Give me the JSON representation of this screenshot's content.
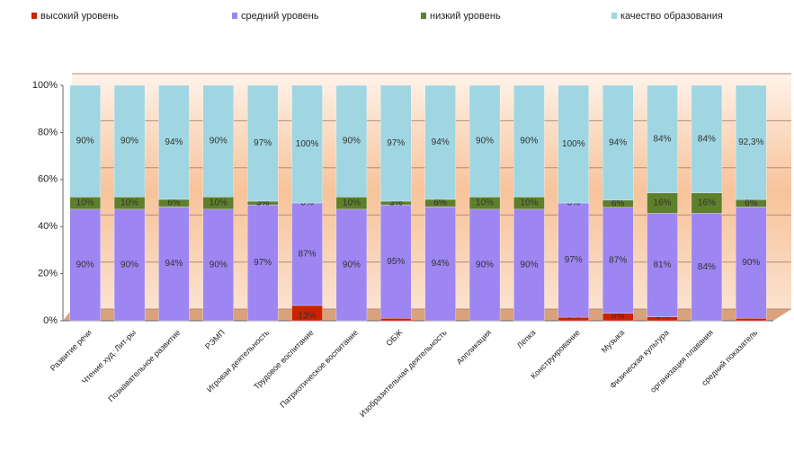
{
  "chart_data": {
    "type": "stacked_bar_percent",
    "categories": [
      "Развитие речи",
      "Чтение худ. Лит-ры",
      "Познавательное развитие",
      "РЭМП",
      "Игровая деятельность",
      "Трудовое воспитание",
      "Патриотическое воспитание",
      "ОБЖ",
      "Изобразительная деятельность",
      "Аппликация",
      "Лепка",
      "Конструирование",
      "Музыка",
      "Физическая культура",
      "организация плавания",
      "средний показатель"
    ],
    "series": [
      {
        "name": "высокий уровень",
        "color": "#cc2200",
        "values": [
          0,
          0,
          0,
          0,
          0,
          13,
          0,
          2,
          0,
          0,
          0,
          3,
          6,
          3,
          0,
          2
        ],
        "value_labels": [
          "0%",
          "0%",
          "0%",
          "0%",
          "0%",
          "13%",
          "0%",
          "2%",
          "0%",
          "0%",
          "0%",
          "3%",
          "6%",
          "3%",
          "0%",
          "2%"
        ]
      },
      {
        "name": "средний уровень",
        "color": "#9d85f2",
        "values": [
          90,
          90,
          94,
          90,
          97,
          87,
          90,
          95,
          94,
          90,
          90,
          97,
          87,
          81,
          84,
          90
        ],
        "value_labels": [
          "90%",
          "90%",
          "94%",
          "90%",
          "97%",
          "87%",
          "90%",
          "95%",
          "94%",
          "90%",
          "90%",
          "97%",
          "87%",
          "81%",
          "84%",
          "90%"
        ]
      },
      {
        "name": "низкий уровень",
        "color": "#5e7f2c",
        "values": [
          10,
          10,
          6,
          10,
          3,
          0,
          10,
          3,
          6,
          10,
          10,
          0,
          6,
          16,
          16,
          6
        ],
        "value_labels": [
          "10%",
          "10%",
          "6%",
          "10%",
          "3%",
          "0%",
          "10%",
          "3%",
          "6%",
          "10%",
          "10%",
          "0%",
          "6%",
          "16%",
          "16%",
          "6%"
        ]
      },
      {
        "name": "качество образования",
        "color": "#9fd6e2",
        "values": [
          90,
          90,
          94,
          90,
          97,
          100,
          90,
          97,
          94,
          90,
          90,
          100,
          94,
          84,
          84,
          92.3
        ],
        "value_labels": [
          "90%",
          "90%",
          "94%",
          "90%",
          "97%",
          "100%",
          "90%",
          "97%",
          "94%",
          "90%",
          "90%",
          "100%",
          "94%",
          "84%",
          "84%",
          "92,3%"
        ]
      }
    ],
    "ylim": [
      0,
      100
    ],
    "yticks": [
      {
        "value": 0,
        "label": "0%"
      },
      {
        "value": 20,
        "label": "20%"
      },
      {
        "value": 40,
        "label": "40%"
      },
      {
        "value": 60,
        "label": "60%"
      },
      {
        "value": 80,
        "label": "80%"
      },
      {
        "value": 100,
        "label": "100%"
      }
    ],
    "grid": true,
    "legend": "top"
  }
}
